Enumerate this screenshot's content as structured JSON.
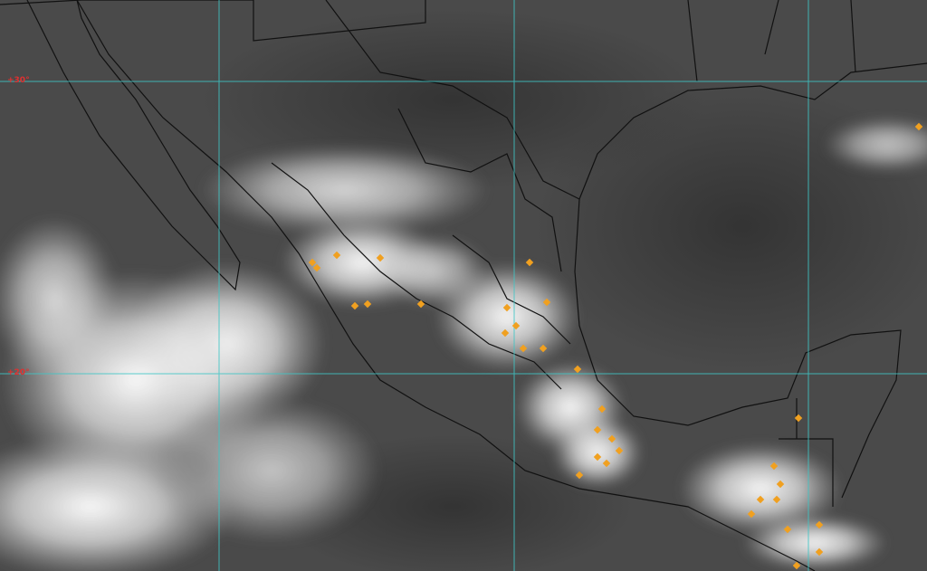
{
  "map": {
    "type": "infrared satellite image",
    "colors": {
      "background": "#4a4a4a",
      "cloud": "#f4f4f4",
      "gridline": "#3fc6c6",
      "borders": "#111111",
      "lightning": "#f0a020",
      "label": "#e03030"
    },
    "latitude_labels": [
      {
        "text": "+30°",
        "lat": 30
      },
      {
        "text": "+20°",
        "lat": 20
      }
    ]
  }
}
